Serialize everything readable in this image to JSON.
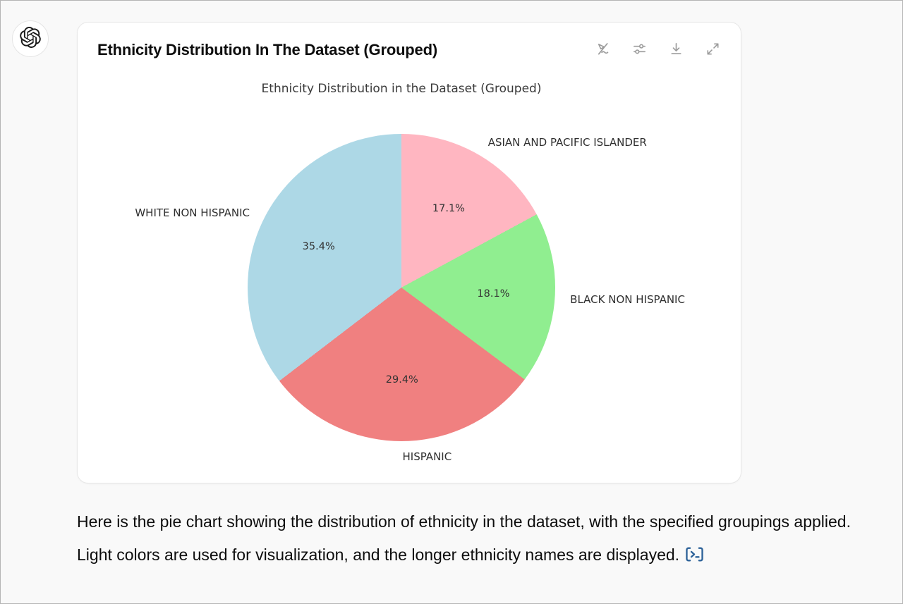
{
  "assistant": {
    "avatar_icon": "openai-logo-icon",
    "message": {
      "text": "Here is the pie chart showing the distribution of ethnicity in the dataset, with the specified groupings applied. Light colors are used for visualization, and the longer ethnicity names are displayed.",
      "trailing_icon": "terminal-badge-icon"
    }
  },
  "card": {
    "title": "Ethnicity Distribution In The Dataset (Grouped)",
    "toolbar": [
      {
        "name": "toggle-interactive-chart",
        "icon": "interactive-chart-off-icon"
      },
      {
        "name": "chart-settings",
        "icon": "sliders-icon"
      },
      {
        "name": "download-chart",
        "icon": "download-icon"
      },
      {
        "name": "expand-chart",
        "icon": "expand-icon"
      }
    ]
  },
  "chart_data": {
    "type": "pie",
    "title": "Ethnicity Distribution in the Dataset (Grouped)",
    "categories": [
      "ASIAN AND PACIFIC ISLANDER",
      "BLACK NON HISPANIC",
      "HISPANIC",
      "WHITE NON HISPANIC"
    ],
    "values": [
      17.1,
      18.1,
      29.4,
      35.4
    ],
    "percent_labels": [
      "17.1%",
      "18.1%",
      "29.4%",
      "35.4%"
    ],
    "colors": [
      "#ffb6c1",
      "#90ee90",
      "#f08080",
      "#add8e6"
    ],
    "start_angle_deg": 90,
    "direction": "clockwise",
    "label_distance": 1.1,
    "pct_distance": 0.6,
    "legend": "none"
  }
}
